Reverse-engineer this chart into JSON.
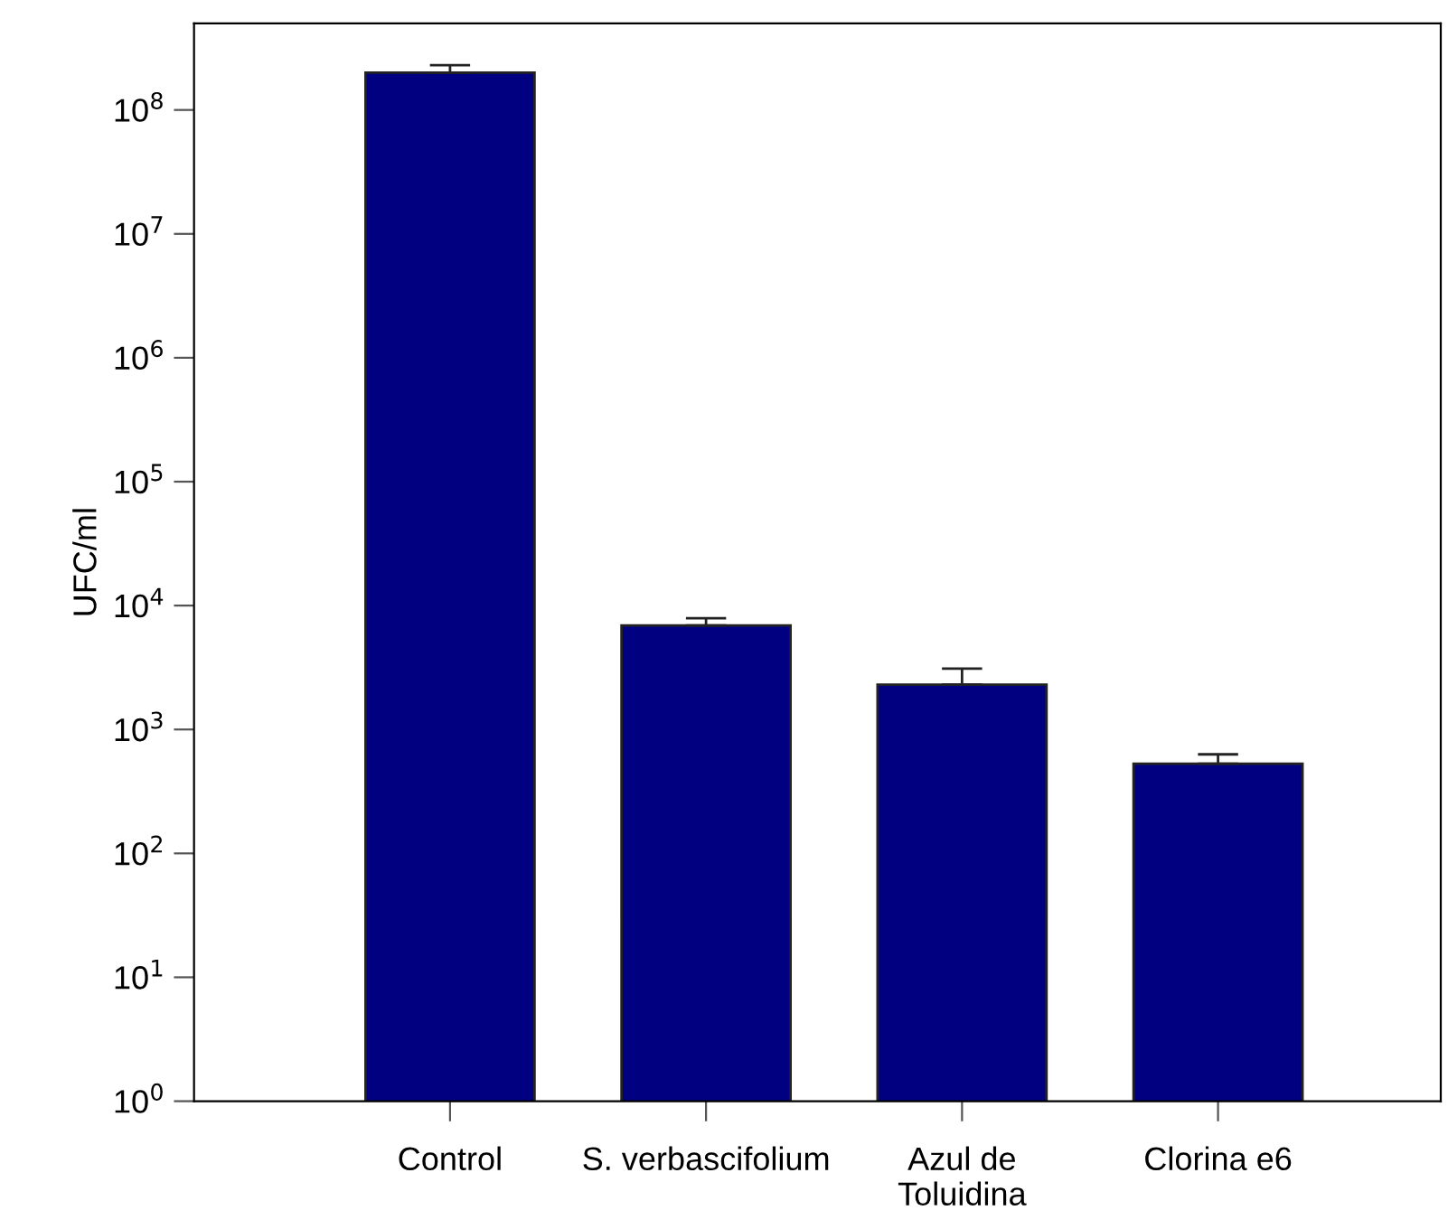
{
  "chart_data": {
    "type": "bar",
    "ylabel": "UFC/ml",
    "categories": [
      "Control",
      "S. verbascifolium",
      "Azul de\nToluidina",
      "Clorina e6"
    ],
    "values": [
      200000000.0,
      6900.0,
      2300.0,
      530
    ],
    "errors": [
      [
        200000000.0,
        230000000.0
      ],
      [
        6900.0,
        7900.0
      ],
      [
        2300.0,
        3100.0
      ],
      [
        530,
        630
      ]
    ],
    "color": "#000080",
    "log": "y",
    "ylim": [
      1,
      500000000.0
    ],
    "yticks": [
      {
        "value": 1,
        "label": "10$^{0}$"
      },
      {
        "value": 10,
        "label": "10$^{1}$"
      },
      {
        "value": 100,
        "label": "10$^{2}$"
      },
      {
        "value": 1000,
        "label": "10$^{3}$"
      },
      {
        "value": 10000,
        "label": "10$^{4}$"
      },
      {
        "value": 100000,
        "label": "10$^{5}$"
      },
      {
        "value": 1000000,
        "label": "10$^{6}$"
      },
      {
        "value": 10000000,
        "label": "10$^{7}$"
      },
      {
        "value": 100000000,
        "label": "10$^{8}$"
      }
    ],
    "grid": false
  }
}
